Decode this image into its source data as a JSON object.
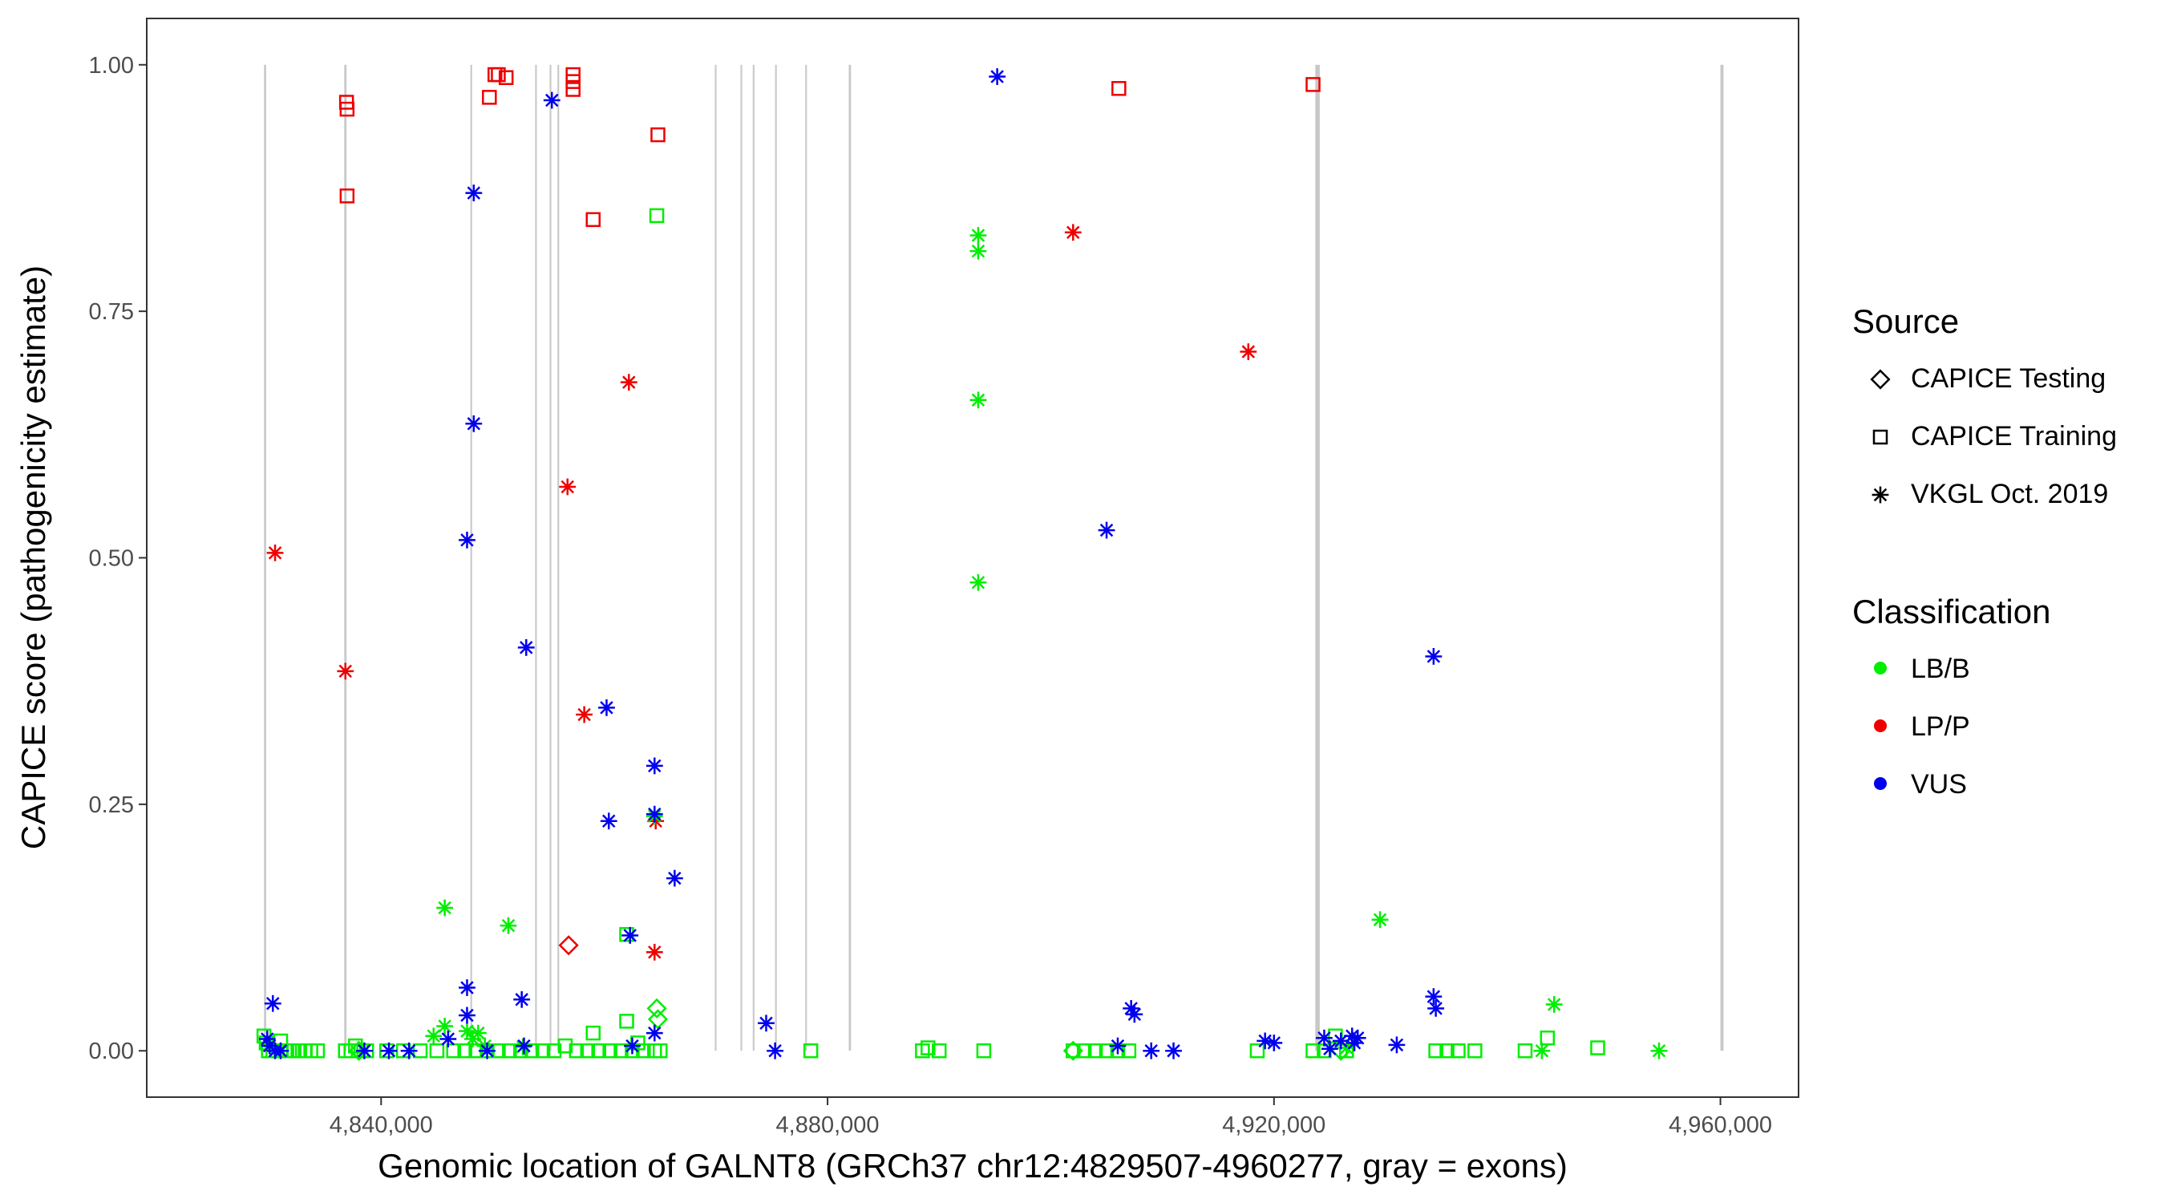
{
  "chart_data": {
    "type": "scatter",
    "xlabel": "Genomic location of GALNT8 (GRCh37 chr12:4829507-4960277, gray = exons)",
    "ylabel": "CAPICE score (pathogenicity estimate)",
    "xlim": [
      4819000,
      4967000
    ],
    "ylim": [
      -0.047,
      1.047
    ],
    "x_ticks": [
      4840000,
      4880000,
      4920000,
      4960000
    ],
    "x_tick_labels": [
      "4,840,000",
      "4,880,000",
      "4,920,000",
      "4,960,000"
    ],
    "y_ticks": [
      0,
      0.25,
      0.5,
      0.75,
      1.0
    ],
    "y_tick_labels": [
      "0.00",
      "0.25",
      "0.50",
      "0.75",
      "1.00"
    ],
    "grid": false,
    "exons": [
      {
        "start": 4829507,
        "end": 4829700
      },
      {
        "start": 4836700,
        "end": 4836900
      },
      {
        "start": 4848000,
        "end": 4848150
      },
      {
        "start": 4853800,
        "end": 4853950
      },
      {
        "start": 4855100,
        "end": 4855250
      },
      {
        "start": 4855800,
        "end": 4855950
      },
      {
        "start": 4869900,
        "end": 4870050
      },
      {
        "start": 4872200,
        "end": 4872350
      },
      {
        "start": 4873300,
        "end": 4873450
      },
      {
        "start": 4875300,
        "end": 4875450
      },
      {
        "start": 4878000,
        "end": 4878150
      },
      {
        "start": 4881900,
        "end": 4882100
      },
      {
        "start": 4923700,
        "end": 4924100
      },
      {
        "start": 4960000,
        "end": 4960277
      }
    ],
    "legend": {
      "source_title": "Source",
      "source_items": [
        {
          "label": "CAPICE Testing",
          "shape": "diamond"
        },
        {
          "label": "CAPICE Training",
          "shape": "square"
        },
        {
          "label": "VKGL Oct. 2019",
          "shape": "asterisk"
        }
      ],
      "class_title": "Classification",
      "class_items": [
        {
          "label": "LB/B",
          "color": "#00ee00"
        },
        {
          "label": "LP/P",
          "color": "#ee0000"
        },
        {
          "label": "VUS",
          "color": "#0000ee"
        }
      ]
    },
    "colors": {
      "LB/B": "#00ee00",
      "LP/P": "#ee0000",
      "VUS": "#0000ee",
      "exon": "#c8c8c8",
      "axis_text": "#4d4d4d"
    },
    "series": [
      {
        "name": "CAPICE Training LP/P",
        "source": "CAPICE Training",
        "classification": "LP/P",
        "x": [
          4836900,
          4836950,
          4836950,
          4849700,
          4850200,
          4850500,
          4851200,
          4857200,
          4857200,
          4857200,
          4859000,
          4864800,
          4906100,
          4923500
        ],
        "y": [
          0.962,
          0.955,
          0.867,
          0.967,
          0.99,
          0.99,
          0.987,
          0.99,
          0.983,
          0.975,
          0.843,
          0.929,
          0.976,
          0.98
        ]
      },
      {
        "name": "CAPICE Training LB/B",
        "source": "CAPICE Training",
        "classification": "LB/B",
        "x": [
          4829500,
          4829700,
          4829900,
          4830300,
          4830700,
          4831000,
          4831400,
          4831800,
          4832200,
          4832700,
          4833200,
          4833700,
          4834300,
          4836800,
          4837300,
          4837700,
          4838200,
          4838700,
          4840500,
          4842000,
          4843500,
          4845000,
          4846500,
          4847500,
          4848500,
          4849500,
          4850500,
          4851500,
          4852500,
          4853500,
          4854500,
          4855500,
          4856500,
          4857500,
          4858500,
          4859500,
          4860500,
          4861500,
          4862500,
          4863500,
          4864500,
          4865000,
          4859000,
          4862000,
          4862000,
          4864700,
          4863000,
          4878500,
          4888500,
          4889000,
          4890000,
          4894000,
          4902000,
          4903000,
          4904000,
          4905000,
          4906000,
          4907000,
          4918500,
          4923500,
          4924500,
          4925500,
          4926500,
          4934500,
          4935500,
          4936500,
          4938000,
          4942500,
          4944500,
          4949000,
          4831000
        ],
        "y": [
          0.015,
          0.008,
          0.0,
          0.0,
          0.0,
          0.0,
          0.0,
          0.0,
          0.0,
          0.0,
          0.0,
          0.0,
          0.0,
          0.0,
          0.0,
          0.005,
          0.0,
          0.0,
          0.0,
          0.0,
          0.0,
          0.0,
          0.0,
          0.0,
          0.0,
          0.0,
          0.0,
          0.0,
          0.0,
          0.0,
          0.0,
          0.0,
          0.005,
          0.0,
          0.0,
          0.0,
          0.0,
          0.0,
          0.0,
          0.0,
          0.0,
          0.0,
          0.018,
          0.03,
          0.118,
          0.847,
          0.008,
          0.0,
          0.0,
          0.003,
          0.0,
          0.0,
          0.0,
          0.0,
          0.0,
          0.0,
          0.0,
          0.0,
          0.0,
          0.0,
          0.0,
          0.015,
          0.0,
          0.0,
          0.0,
          0.0,
          0.0,
          0.0,
          0.013,
          0.003,
          0.01
        ]
      },
      {
        "name": "CAPICE Testing LP/P",
        "source": "CAPICE Testing",
        "classification": "LP/P",
        "x": [
          4856800
        ],
        "y": [
          0.107
        ]
      },
      {
        "name": "CAPICE Testing LB/B",
        "source": "CAPICE Testing",
        "classification": "LB/B",
        "x": [
          4864700,
          4864800,
          4902000,
          4926000,
          4838000
        ],
        "y": [
          0.043,
          0.032,
          0.0,
          0.0,
          0.0
        ]
      },
      {
        "name": "VKGL Oct. 2019 LP/P",
        "source": "VKGL Oct. 2019",
        "classification": "LP/P",
        "x": [
          4830500,
          4836800,
          4856700,
          4858200,
          4862200,
          4864500,
          4864600,
          4902000,
          4917700
        ],
        "y": [
          0.505,
          0.385,
          0.572,
          0.341,
          0.678,
          0.1,
          0.233,
          0.83,
          0.709
        ]
      },
      {
        "name": "VKGL Oct. 2019 LB/B",
        "source": "VKGL Oct. 2019",
        "classification": "LB/B",
        "x": [
          4845700,
          4851400,
          4893500,
          4893500,
          4893500,
          4893500,
          4929500,
          4945100,
          4954500,
          4844700,
          4845700,
          4847700,
          4848200,
          4848700,
          4849300,
          4852700,
          4864500,
          4926500,
          4944000
        ],
        "y": [
          0.145,
          0.127,
          0.827,
          0.811,
          0.66,
          0.475,
          0.133,
          0.047,
          0.0,
          0.015,
          0.025,
          0.02,
          0.012,
          0.018,
          0.005,
          0.004,
          0.238,
          0.003,
          0.0
        ]
      },
      {
        "name": "VKGL Oct. 2019 VUS",
        "source": "VKGL Oct. 2019",
        "classification": "VUS",
        "x": [
          4895200,
          4855300,
          4848300,
          4848300,
          4847700,
          4853000,
          4860200,
          4860400,
          4864500,
          4864500,
          4866300,
          4862300,
          4847700,
          4847700,
          4852600,
          4830300,
          4874500,
          4905000,
          4934300,
          4934300,
          4934500,
          4907200,
          4907500,
          4829800,
          4830000,
          4830500,
          4831000,
          4838500,
          4840700,
          4842500,
          4846000,
          4849500,
          4852800,
          4864500,
          4862500,
          4875300,
          4906000,
          4909000,
          4911000,
          4919200,
          4920000,
          4924500,
          4926000,
          4927000,
          4927200,
          4931000,
          4927500,
          4925000
        ],
        "y": [
          0.988,
          0.964,
          0.87,
          0.636,
          0.518,
          0.409,
          0.348,
          0.233,
          0.289,
          0.24,
          0.175,
          0.117,
          0.064,
          0.036,
          0.052,
          0.048,
          0.028,
          0.528,
          0.4,
          0.055,
          0.043,
          0.043,
          0.037,
          0.012,
          0.005,
          0.0,
          0.0,
          0.0,
          0.0,
          0.0,
          0.012,
          0.0,
          0.005,
          0.018,
          0.005,
          0.0,
          0.005,
          0.0,
          0.0,
          0.01,
          0.008,
          0.013,
          0.01,
          0.015,
          0.008,
          0.006,
          0.013,
          0.002
        ]
      }
    ]
  }
}
